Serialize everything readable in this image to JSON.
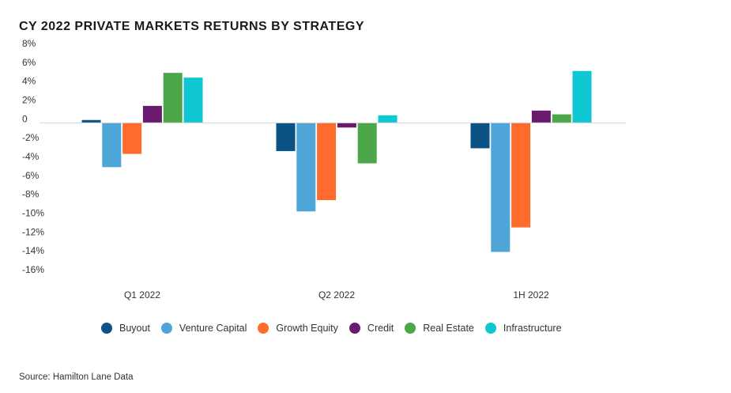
{
  "chart_data": {
    "type": "bar",
    "title": "CY 2022 PRIVATE MARKETS RETURNS BY STRATEGY",
    "categories": [
      "Q1 2022",
      "Q2 2022",
      "1H 2022"
    ],
    "series": [
      {
        "name": "Buyout",
        "color": "#0b5384",
        "values": [
          0.3,
          -3.0,
          -2.7
        ]
      },
      {
        "name": "Venture Capital",
        "color": "#4ea6d8",
        "values": [
          -4.7,
          -9.4,
          -13.7
        ]
      },
      {
        "name": "Growth Equity",
        "color": "#ff6b2c",
        "values": [
          -3.3,
          -8.2,
          -11.1
        ]
      },
      {
        "name": "Credit",
        "color": "#6a1b6f",
        "values": [
          1.8,
          -0.5,
          1.3
        ]
      },
      {
        "name": "Real Estate",
        "color": "#4ca748",
        "values": [
          5.3,
          -4.3,
          0.9
        ]
      },
      {
        "name": "Infrastructure",
        "color": "#0ec7d2",
        "values": [
          4.8,
          0.8,
          5.5
        ]
      }
    ],
    "yticks": [
      8,
      6,
      4,
      2,
      0,
      -2,
      -4,
      -6,
      -8,
      -10,
      -12,
      -14,
      -16
    ],
    "ytick_labels": [
      "8%",
      "6%",
      "4%",
      "2%",
      "0",
      "-2%",
      "-4%",
      "-6%",
      "-8%",
      "-10%",
      "-12%",
      "-14%",
      "-16%"
    ],
    "ylim": [
      -16,
      8
    ],
    "xlabel": "",
    "ylabel": "",
    "legend": "bottom",
    "grid": false
  },
  "source": "Source: Hamilton Lane Data"
}
